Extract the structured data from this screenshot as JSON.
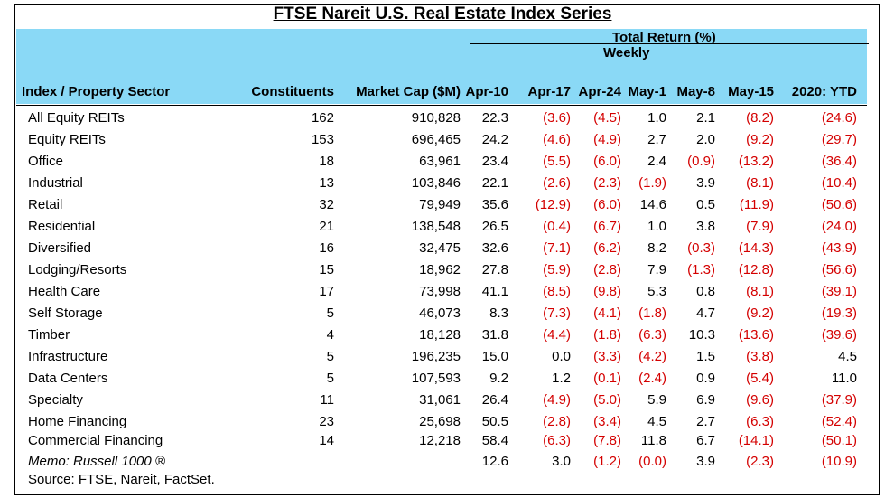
{
  "title": "FTSE Nareit U.S. Real Estate Index Series",
  "header": {
    "group_label": "Total Return (%)",
    "subgroup_label": "Weekly",
    "columns": [
      "Index / Property Sector",
      "Constituents",
      "Market Cap ($M)",
      "Apr-10",
      "Apr-17",
      "Apr-24",
      "May-1",
      "May-8",
      "May-15",
      "2020: YTD"
    ]
  },
  "rows": [
    {
      "label": "All Equity REITs",
      "constituents": "162",
      "market_cap": "910,828",
      "returns": [
        "22.3",
        "(3.6)",
        "(4.5)",
        "1.0",
        "2.1",
        "(8.2)",
        "(24.6)"
      ]
    },
    {
      "label": "Equity REITs",
      "constituents": "153",
      "market_cap": "696,465",
      "returns": [
        "24.2",
        "(4.6)",
        "(4.9)",
        "2.7",
        "2.0",
        "(9.2)",
        "(29.7)"
      ]
    },
    {
      "label": "Office",
      "constituents": "18",
      "market_cap": "63,961",
      "returns": [
        "23.4",
        "(5.5)",
        "(6.0)",
        "2.4",
        "(0.9)",
        "(13.2)",
        "(36.4)"
      ]
    },
    {
      "label": "Industrial",
      "constituents": "13",
      "market_cap": "103,846",
      "returns": [
        "22.1",
        "(2.6)",
        "(2.3)",
        "(1.9)",
        "3.9",
        "(8.1)",
        "(10.4)"
      ]
    },
    {
      "label": "Retail",
      "constituents": "32",
      "market_cap": "79,949",
      "returns": [
        "35.6",
        "(12.9)",
        "(6.0)",
        "14.6",
        "0.5",
        "(11.9)",
        "(50.6)"
      ]
    },
    {
      "label": "Residential",
      "constituents": "21",
      "market_cap": "138,548",
      "returns": [
        "26.5",
        "(0.4)",
        "(6.7)",
        "1.0",
        "3.8",
        "(7.9)",
        "(24.0)"
      ]
    },
    {
      "label": "Diversified",
      "constituents": "16",
      "market_cap": "32,475",
      "returns": [
        "32.6",
        "(7.1)",
        "(6.2)",
        "8.2",
        "(0.3)",
        "(14.3)",
        "(43.9)"
      ]
    },
    {
      "label": "Lodging/Resorts",
      "constituents": "15",
      "market_cap": "18,962",
      "returns": [
        "27.8",
        "(5.9)",
        "(2.8)",
        "7.9",
        "(1.3)",
        "(12.8)",
        "(56.6)"
      ]
    },
    {
      "label": "Health Care",
      "constituents": "17",
      "market_cap": "73,998",
      "returns": [
        "41.1",
        "(8.5)",
        "(9.8)",
        "5.3",
        "0.8",
        "(8.1)",
        "(39.1)"
      ]
    },
    {
      "label": "Self Storage",
      "constituents": "5",
      "market_cap": "46,073",
      "returns": [
        "8.3",
        "(7.3)",
        "(4.1)",
        "(1.8)",
        "4.7",
        "(9.2)",
        "(19.3)"
      ]
    },
    {
      "label": "Timber",
      "constituents": "4",
      "market_cap": "18,128",
      "returns": [
        "31.8",
        "(4.4)",
        "(1.8)",
        "(6.3)",
        "10.3",
        "(13.6)",
        "(39.6)"
      ]
    },
    {
      "label": "Infrastructure",
      "constituents": "5",
      "market_cap": "196,235",
      "returns": [
        "15.0",
        "0.0",
        "(3.3)",
        "(4.2)",
        "1.5",
        "(3.8)",
        "4.5"
      ]
    },
    {
      "label": "Data Centers",
      "constituents": "5",
      "market_cap": "107,593",
      "returns": [
        "9.2",
        "1.2",
        "(0.1)",
        "(2.4)",
        "0.9",
        "(5.4)",
        "11.0"
      ]
    },
    {
      "label": "Specialty",
      "constituents": "11",
      "market_cap": "31,061",
      "returns": [
        "26.4",
        "(4.9)",
        "(5.0)",
        "5.9",
        "6.9",
        "(9.6)",
        "(37.9)"
      ]
    },
    {
      "label": "Home Financing",
      "constituents": "23",
      "market_cap": "25,698",
      "returns": [
        "50.5",
        "(2.8)",
        "(3.4)",
        "4.5",
        "2.7",
        "(6.3)",
        "(52.4)"
      ]
    },
    {
      "label": "Commercial Financing",
      "constituents": "14",
      "market_cap": "12,218",
      "returns": [
        "58.4",
        "(6.3)",
        "(7.8)",
        "11.8",
        "6.7",
        "(14.1)",
        "(50.1)"
      ]
    },
    {
      "label": "Memo: Russell 1000 ®",
      "constituents": "",
      "market_cap": "",
      "returns": [
        "12.6",
        "3.0",
        "(1.2)",
        "(0.0)",
        "3.9",
        "(2.3)",
        "(10.9)"
      ],
      "memo": true
    }
  ],
  "source": "Source: FTSE, Nareit, FactSet.",
  "colors": {
    "header_band": "#8ad9f6",
    "negative": "#d40000",
    "text": "#000000"
  }
}
